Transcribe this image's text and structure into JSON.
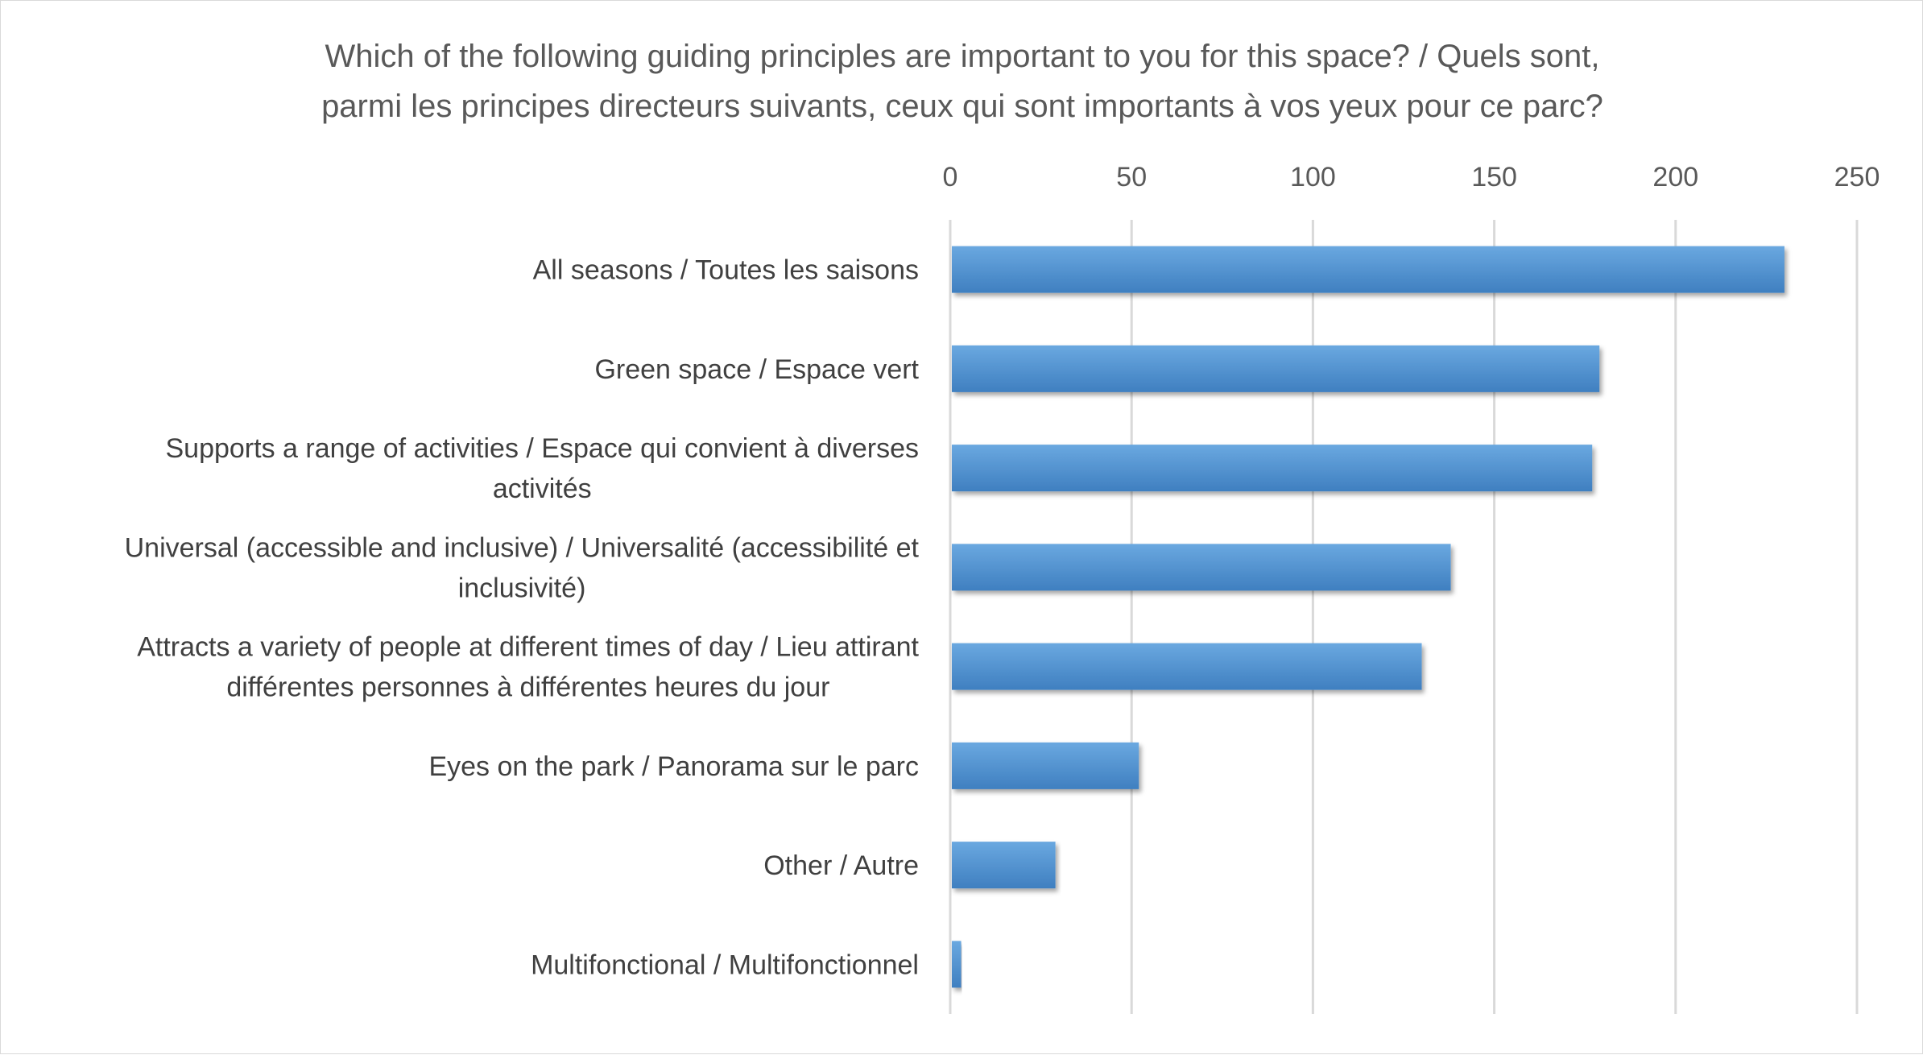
{
  "chart_data": {
    "type": "bar",
    "orientation": "horizontal",
    "title": [
      "Which of the following guiding principles are important to you for this space? / Quels sont,",
      "parmi les principes directeurs suivants, ceux qui sont importants à vos yeux pour ce parc?"
    ],
    "categories": [
      [
        "All seasons / Toutes les saisons"
      ],
      [
        "Green space / Espace vert"
      ],
      [
        "Supports a range of activities / Espace qui convient à diverses",
        "activités"
      ],
      [
        "Universal (accessible and inclusive) / Universalité (accessibilité et",
        "inclusivité)"
      ],
      [
        "Attracts a variety of people at different times of day / Lieu attirant",
        "différentes personnes à différentes heures du jour"
      ],
      [
        "Eyes on the park / Panorama sur le parc"
      ],
      [
        "Other / Autre"
      ],
      [
        "Multifonctional / Multifonctionnel"
      ]
    ],
    "values": [
      230,
      179,
      177,
      138,
      130,
      52,
      29,
      3
    ],
    "xlim": [
      0,
      250
    ],
    "x_ticks": [
      "0",
      "50",
      "100",
      "150",
      "200",
      "250"
    ],
    "x_axis_position": "top",
    "grid": true,
    "legend": "none",
    "colors": {
      "bar": "#5b9bd5",
      "bar_dark": "#3f7fc0",
      "grid": "#d9d9d9",
      "axis_text": "#595959"
    }
  }
}
